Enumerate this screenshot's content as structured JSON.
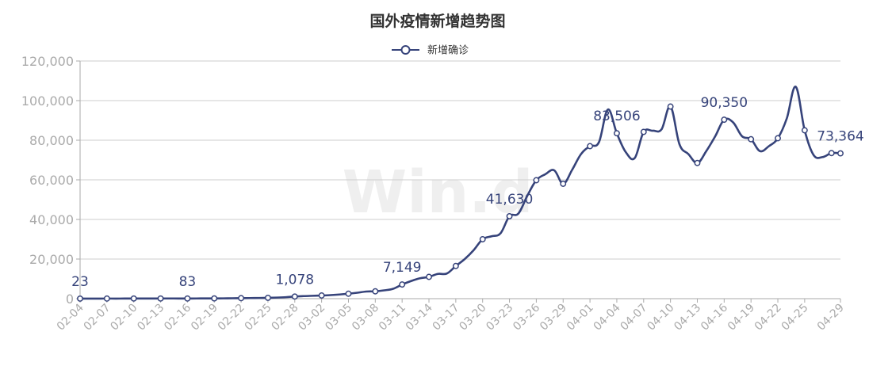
{
  "chart_data": {
    "type": "line",
    "title": "国外疫情新增趋势图",
    "watermark": "Win.d",
    "colors": {
      "series": "#36437a",
      "grid": "#cccccc",
      "axis": "#aaaaaa"
    },
    "legend": {
      "position": "top-center"
    },
    "grid": true,
    "ylim": [
      0,
      120000
    ],
    "yticks": [
      0,
      20000,
      40000,
      60000,
      80000,
      100000,
      120000
    ],
    "ytick_labels": [
      "0",
      "20,000",
      "40,000",
      "60,000",
      "80,000",
      "100,000",
      "120,000"
    ],
    "xtick_labels": [
      "02-04",
      "02-07",
      "02-10",
      "02-13",
      "02-16",
      "02-19",
      "02-22",
      "02-25",
      "02-28",
      "03-02",
      "03-05",
      "03-08",
      "03-11",
      "03-14",
      "03-17",
      "03-20",
      "03-23",
      "03-26",
      "03-29",
      "04-01",
      "04-04",
      "04-07",
      "04-10",
      "04-13",
      "04-16",
      "04-19",
      "04-22",
      "04-25",
      "04-29"
    ],
    "x": [
      "02-04",
      "02-05",
      "02-06",
      "02-07",
      "02-08",
      "02-09",
      "02-10",
      "02-11",
      "02-12",
      "02-13",
      "02-14",
      "02-15",
      "02-16",
      "02-17",
      "02-18",
      "02-19",
      "02-20",
      "02-21",
      "02-22",
      "02-23",
      "02-24",
      "02-25",
      "02-26",
      "02-27",
      "02-28",
      "02-29",
      "03-01",
      "03-02",
      "03-03",
      "03-04",
      "03-05",
      "03-06",
      "03-07",
      "03-08",
      "03-09",
      "03-10",
      "03-11",
      "03-12",
      "03-13",
      "03-14",
      "03-15",
      "03-16",
      "03-17",
      "03-18",
      "03-19",
      "03-20",
      "03-21",
      "03-22",
      "03-23",
      "03-24",
      "03-25",
      "03-26",
      "03-27",
      "03-28",
      "03-29",
      "03-30",
      "03-31",
      "04-01",
      "04-02",
      "04-03",
      "04-04",
      "04-05",
      "04-06",
      "04-07",
      "04-08",
      "04-09",
      "04-10",
      "04-11",
      "04-12",
      "04-13",
      "04-14",
      "04-15",
      "04-16",
      "04-17",
      "04-18",
      "04-19",
      "04-20",
      "04-21",
      "04-22",
      "04-23",
      "04-24",
      "04-25",
      "04-26",
      "04-27",
      "04-28",
      "04-29"
    ],
    "series": [
      {
        "name": "新增确诊",
        "values": [
          23,
          30,
          40,
          50,
          45,
          60,
          70,
          80,
          75,
          90,
          100,
          90,
          83,
          100,
          110,
          120,
          150,
          200,
          250,
          300,
          350,
          420,
          550,
          750,
          1078,
          1300,
          1450,
          1600,
          1800,
          2100,
          2500,
          3000,
          3600,
          3700,
          4200,
          5000,
          7149,
          8900,
          10300,
          11000,
          12500,
          12700,
          16500,
          20000,
          24500,
          30000,
          31500,
          33000,
          41630,
          43000,
          52000,
          59800,
          62800,
          64800,
          58000,
          65000,
          73000,
          77000,
          79000,
          95500,
          83506,
          74000,
          71000,
          84200,
          84800,
          85500,
          97000,
          78000,
          73000,
          68500,
          74500,
          82000,
          90350,
          89000,
          82000,
          80500,
          74500,
          77000,
          81000,
          91000,
          107000,
          85000,
          72500,
          71500,
          73500,
          73364
        ],
        "markers": [
          0,
          3,
          6,
          9,
          12,
          15,
          18,
          21,
          24,
          27,
          30,
          33,
          36,
          39,
          42,
          45,
          48,
          51,
          54,
          57,
          60,
          63,
          66,
          69,
          72,
          75,
          78,
          81,
          84,
          85
        ],
        "data_labels": [
          {
            "x": "02-04",
            "value": 23,
            "text": "23"
          },
          {
            "x": "02-16",
            "value": 83,
            "text": "83"
          },
          {
            "x": "02-28",
            "value": 1078,
            "text": "1,078"
          },
          {
            "x": "03-11",
            "value": 7149,
            "text": "7,149"
          },
          {
            "x": "03-23",
            "value": 41630,
            "text": "41,630"
          },
          {
            "x": "04-04",
            "value": 83506,
            "text": "83,506"
          },
          {
            "x": "04-16",
            "value": 90350,
            "text": "90,350"
          },
          {
            "x": "04-29",
            "value": 73364,
            "text": "73,364"
          }
        ]
      }
    ]
  }
}
